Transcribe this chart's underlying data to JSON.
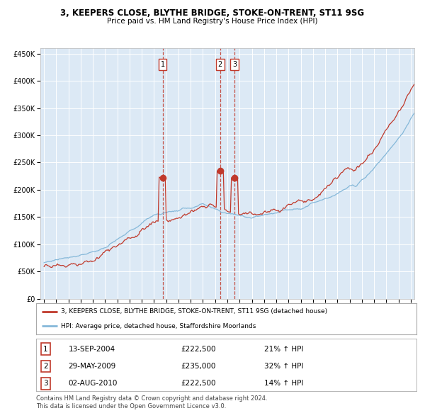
{
  "title": "3, KEEPERS CLOSE, BLYTHE BRIDGE, STOKE-ON-TRENT, ST11 9SG",
  "subtitle": "Price paid vs. HM Land Registry's House Price Index (HPI)",
  "red_line_label": "3, KEEPERS CLOSE, BLYTHE BRIDGE, STOKE-ON-TRENT, ST11 9SG (detached house)",
  "blue_line_label": "HPI: Average price, detached house, Staffordshire Moorlands",
  "transactions": [
    {
      "num": 1,
      "date": "13-SEP-2004",
      "price": 222500,
      "hpi_rel": "21% ↑ HPI",
      "date_decimal": 2004.7
    },
    {
      "num": 2,
      "date": "29-MAY-2009",
      "price": 235000,
      "hpi_rel": "32% ↑ HPI",
      "date_decimal": 2009.41
    },
    {
      "num": 3,
      "date": "02-AUG-2010",
      "price": 222500,
      "hpi_rel": "14% ↑ HPI",
      "date_decimal": 2010.58
    }
  ],
  "footer": "Contains HM Land Registry data © Crown copyright and database right 2024.\nThis data is licensed under the Open Government Licence v3.0.",
  "plot_bg_color": "#dce9f5",
  "red_color": "#c0392b",
  "blue_color": "#85b8d9",
  "grid_color": "#ffffff",
  "ylim": [
    0,
    460000
  ],
  "yticks": [
    0,
    50000,
    100000,
    150000,
    200000,
    250000,
    300000,
    350000,
    400000,
    450000
  ],
  "xstart": 1994.7,
  "xend": 2025.3
}
